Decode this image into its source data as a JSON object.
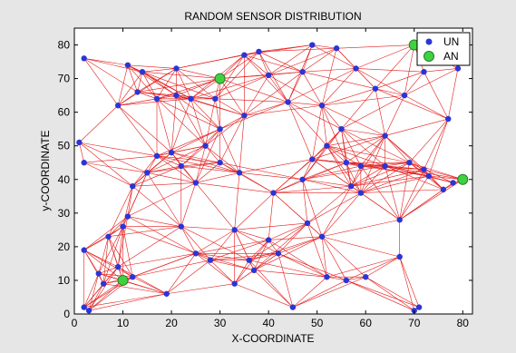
{
  "chart_data": {
    "type": "scatter",
    "title": "RANDOM SENSOR DISTRIBUTION",
    "xlabel": "X-COORDINATE",
    "ylabel": "y-COORDINATE",
    "xlim": [
      0,
      82
    ],
    "ylim": [
      0,
      85
    ],
    "xticks": [
      0,
      10,
      20,
      30,
      40,
      50,
      60,
      70,
      80
    ],
    "yticks": [
      0,
      10,
      20,
      30,
      40,
      50,
      60,
      70,
      80
    ],
    "grid": false,
    "legend_position": "top-right",
    "connection_range": 18,
    "colors": {
      "figure_bg": "#e6e6e6",
      "plot_bg": "#ffffff",
      "link": "#e31a1a",
      "un": "#2b35d6",
      "an": "#3fd23f",
      "an_edge": "#2a7a2a"
    },
    "series": [
      {
        "name": "UN",
        "marker": "dot",
        "points": [
          [
            2,
            76
          ],
          [
            11,
            74
          ],
          [
            21,
            73
          ],
          [
            17,
            64
          ],
          [
            9,
            62
          ],
          [
            13,
            66
          ],
          [
            14,
            72
          ],
          [
            24,
            64
          ],
          [
            21,
            65
          ],
          [
            35,
            77
          ],
          [
            38,
            78
          ],
          [
            49,
            80
          ],
          [
            54,
            79
          ],
          [
            40,
            71
          ],
          [
            47,
            72
          ],
          [
            44,
            63
          ],
          [
            51,
            62
          ],
          [
            35,
            59
          ],
          [
            29,
            64
          ],
          [
            58,
            73
          ],
          [
            62,
            67
          ],
          [
            68,
            65
          ],
          [
            72,
            72
          ],
          [
            79,
            73
          ],
          [
            77,
            58
          ],
          [
            64,
            53
          ],
          [
            55,
            55
          ],
          [
            52,
            50
          ],
          [
            49,
            46
          ],
          [
            56,
            45
          ],
          [
            59,
            44
          ],
          [
            69,
            45
          ],
          [
            72,
            43
          ],
          [
            73,
            41
          ],
          [
            76,
            37
          ],
          [
            78,
            39
          ],
          [
            57,
            38
          ],
          [
            59,
            36
          ],
          [
            47,
            40
          ],
          [
            41,
            36
          ],
          [
            34,
            42
          ],
          [
            30,
            45
          ],
          [
            25,
            39
          ],
          [
            22,
            44
          ],
          [
            20,
            48
          ],
          [
            17,
            47
          ],
          [
            15,
            42
          ],
          [
            12,
            38
          ],
          [
            11,
            29
          ],
          [
            10,
            26
          ],
          [
            1,
            51
          ],
          [
            2,
            45
          ],
          [
            2,
            19
          ],
          [
            5,
            12
          ],
          [
            6,
            9
          ],
          [
            7,
            23
          ],
          [
            9,
            14
          ],
          [
            12,
            11
          ],
          [
            19,
            6
          ],
          [
            22,
            26
          ],
          [
            25,
            18
          ],
          [
            28,
            16
          ],
          [
            33,
            9
          ],
          [
            33,
            25
          ],
          [
            36,
            16
          ],
          [
            37,
            13
          ],
          [
            40,
            22
          ],
          [
            42,
            18
          ],
          [
            45,
            2
          ],
          [
            48,
            27
          ],
          [
            51,
            23
          ],
          [
            52,
            11
          ],
          [
            56,
            10
          ],
          [
            60,
            11
          ],
          [
            67,
            28
          ],
          [
            67,
            17
          ],
          [
            70,
            1
          ],
          [
            71,
            2
          ],
          [
            2,
            2
          ],
          [
            3,
            1
          ],
          [
            30,
            55
          ],
          [
            27,
            50
          ],
          [
            64,
            44
          ]
        ]
      },
      {
        "name": "AN",
        "marker": "circle",
        "points": [
          [
            70,
            80
          ],
          [
            80,
            40
          ],
          [
            30,
            70
          ],
          [
            10,
            10
          ]
        ]
      }
    ]
  }
}
